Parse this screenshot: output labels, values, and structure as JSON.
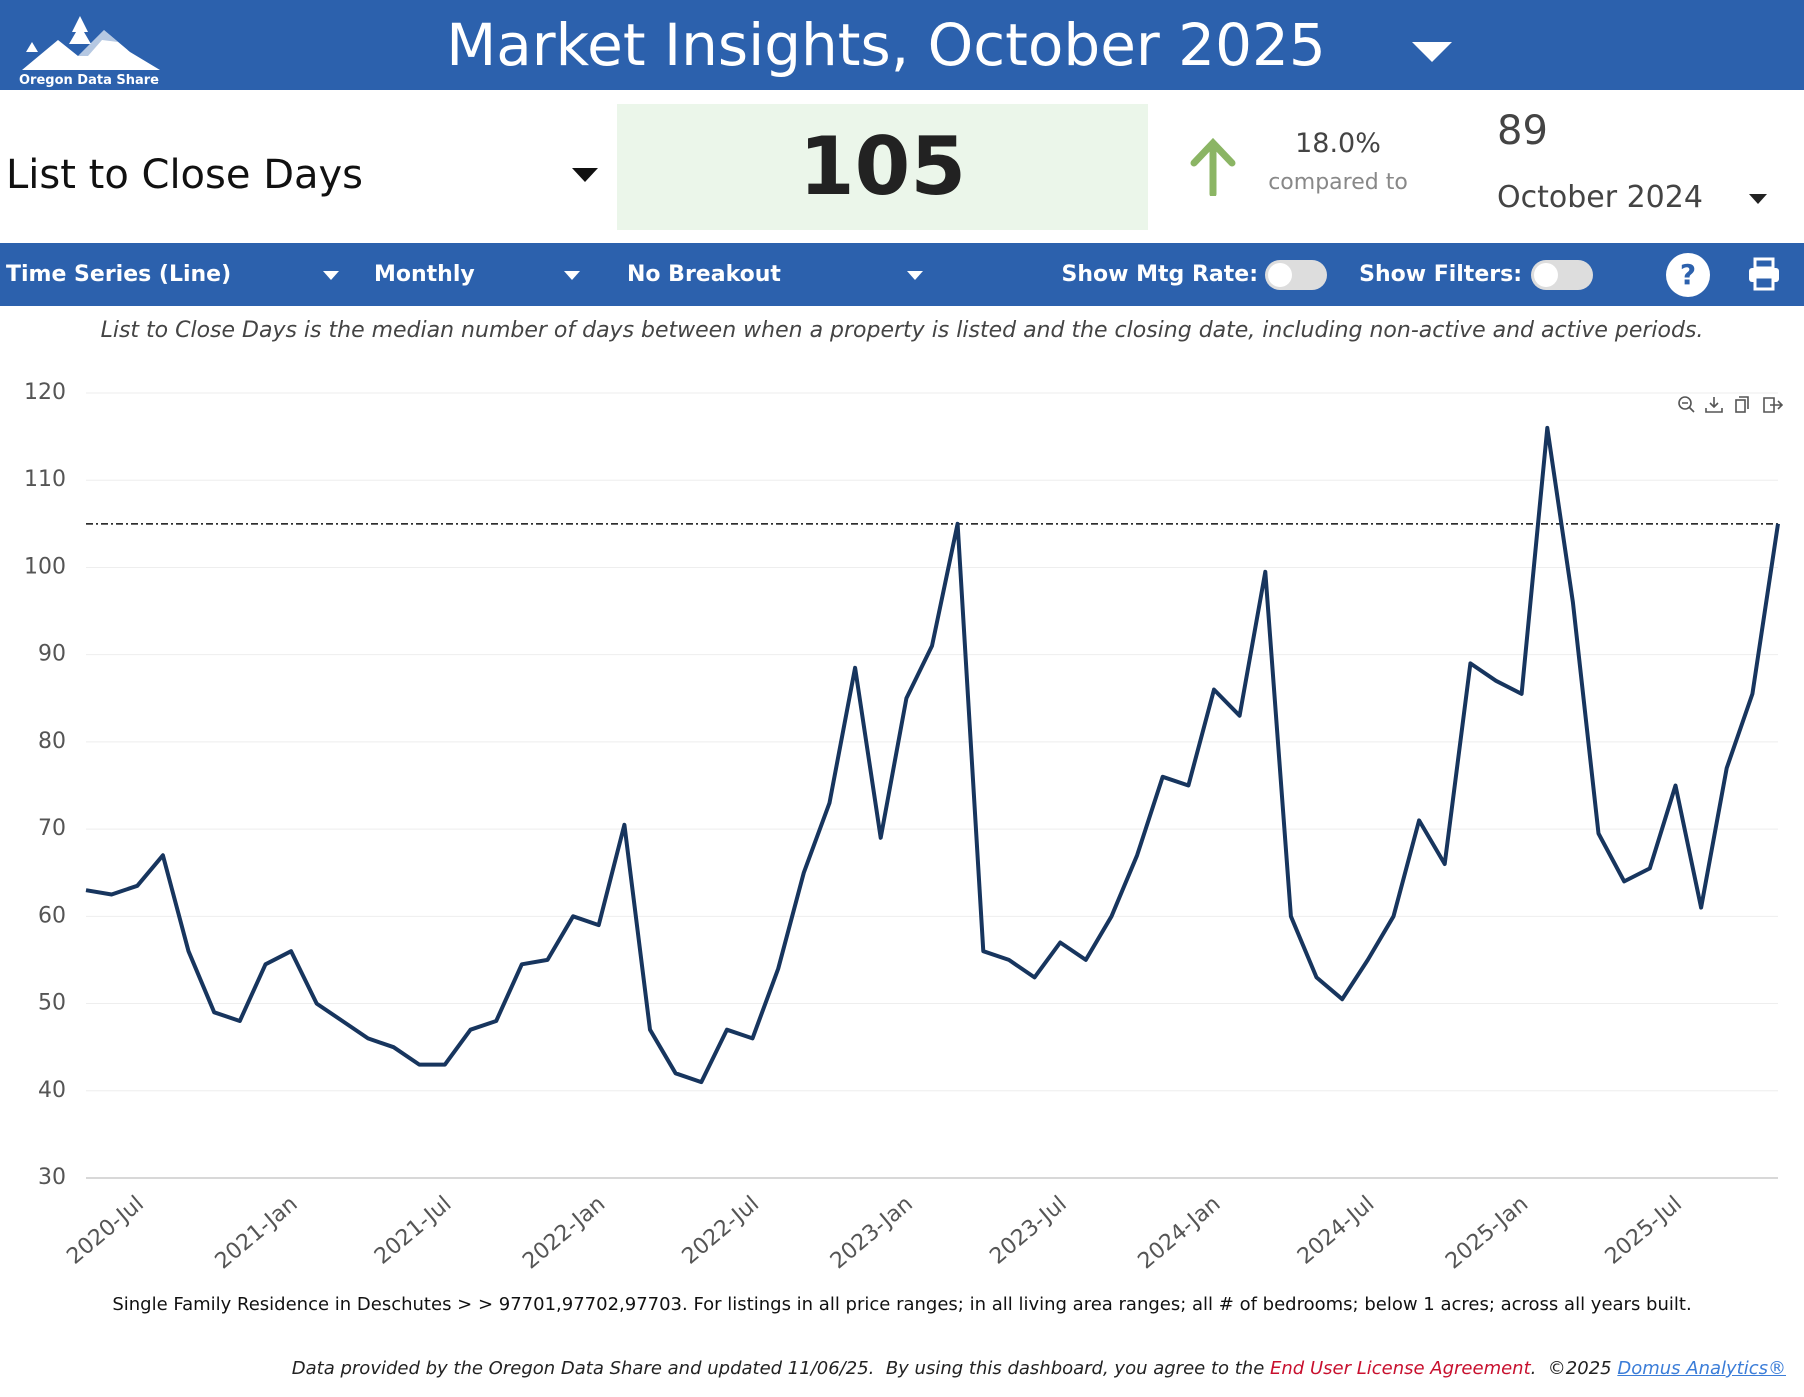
{
  "header": {
    "logo_text": "Oregon Data Share",
    "title": "Market Insights, October 2025"
  },
  "kpi": {
    "metric": "List to Close Days",
    "value": 105,
    "change": "18.0%",
    "compared_label": "compared to",
    "compare_value": 89,
    "compare_period": "October 2024"
  },
  "controls": {
    "chart_type": "Time Series (Line)",
    "interval": "Monthly",
    "breakout": "No Breakout",
    "mtg_rate_label": "Show Mtg Rate:",
    "filters_label": "Show Filters:",
    "help": "?"
  },
  "description": "List to Close Days is the median number of days between when a property is listed and the closing date, including non-active and active periods.",
  "chart_data": {
    "type": "line",
    "categories": [
      null,
      null,
      null,
      "2020-Jul",
      null,
      null,
      null,
      null,
      null,
      "2021-Jan",
      null,
      null,
      null,
      null,
      null,
      "2021-Jul",
      null,
      null,
      null,
      null,
      null,
      "2022-Jan",
      null,
      null,
      null,
      null,
      null,
      "2022-Jul",
      null,
      null,
      null,
      null,
      null,
      "2023-Jan",
      null,
      null,
      null,
      null,
      null,
      "2023-Jul",
      null,
      null,
      null,
      null,
      null,
      "2024-Jan",
      null,
      null,
      null,
      null,
      null,
      "2024-Jul",
      null,
      null,
      null,
      null,
      null,
      "2025-Jan",
      null,
      null,
      null,
      null,
      null,
      "2025-Jul",
      null,
      null,
      null
    ],
    "values": [
      63,
      62.5,
      63.5,
      67,
      56,
      49,
      48,
      54.5,
      56,
      50,
      48,
      46,
      45,
      43,
      43,
      47,
      48,
      54.5,
      55,
      60,
      59,
      70.5,
      47,
      42,
      41,
      47,
      46,
      54,
      65,
      73,
      88.5,
      69,
      85,
      91,
      105,
      56,
      55,
      53,
      57,
      55,
      60,
      67,
      76,
      75,
      86,
      83,
      99.5,
      60,
      53,
      50.5,
      55,
      60,
      71,
      66,
      89,
      87,
      85.5,
      116,
      96,
      69.5,
      64,
      65.5,
      75,
      61,
      77,
      85.5,
      105
    ],
    "color": "#17355e",
    "reference_line": 105,
    "ylim": [
      30,
      120
    ],
    "yticks": [
      30,
      40,
      50,
      60,
      70,
      80,
      90,
      100,
      110,
      120
    ],
    "grid": true
  },
  "filter_note": "Single Family Residence in Deschutes > > 97701,97702,97703. For listings in all price ranges; in all living area ranges; all # of bedrooms; below 1 acres; across all years built.",
  "footer": {
    "text": "Data provided by the Oregon Data Share and updated 11/06/25.  By using this dashboard, you agree to the ",
    "eula": "End User License Agreement",
    "copyright": ".  ©2025 ",
    "company": "Domus Analytics®"
  }
}
